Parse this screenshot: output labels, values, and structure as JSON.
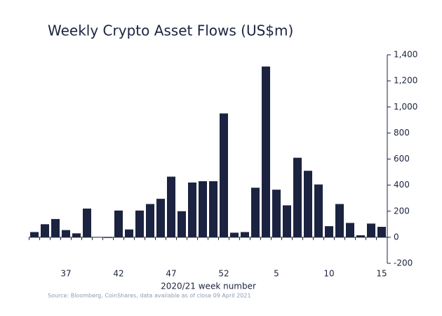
{
  "chart_data": {
    "type": "bar",
    "title": "Weekly Crypto Asset Flows (US$m)",
    "x_label": "2020/21 week number",
    "source": "Source: Bloomberg, CoinShares, data available as of close 09 April 2021",
    "categories": [
      null,
      null,
      null,
      "37",
      null,
      null,
      null,
      null,
      "42",
      null,
      null,
      null,
      null,
      "47",
      null,
      null,
      null,
      null,
      "52",
      null,
      null,
      null,
      null,
      "5",
      null,
      null,
      null,
      null,
      "10",
      null,
      null,
      null,
      null,
      "15"
    ],
    "values": [
      40,
      100,
      140,
      55,
      30,
      220,
      0,
      -5,
      205,
      60,
      205,
      255,
      295,
      465,
      200,
      420,
      430,
      430,
      950,
      35,
      40,
      380,
      1310,
      365,
      245,
      610,
      510,
      405,
      85,
      255,
      110,
      15,
      105,
      80
    ],
    "color": "#1b2340",
    "ylim": [
      -200,
      1400
    ],
    "yticks": [
      -200,
      0,
      200,
      400,
      600,
      800,
      {
        "value": 1000,
        "label": "1,000"
      },
      {
        "value": 1200,
        "label": "1,200"
      },
      {
        "value": 1400,
        "label": "1,400"
      }
    ]
  }
}
